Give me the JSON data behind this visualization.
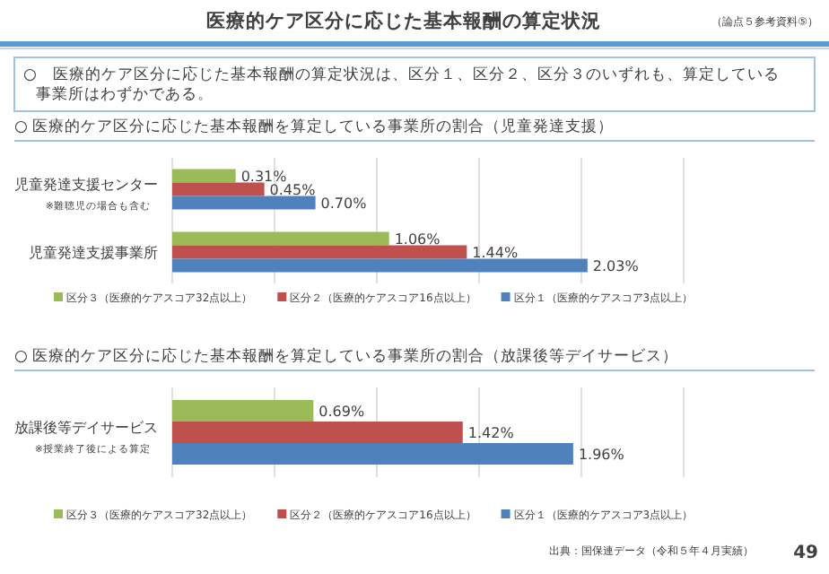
{
  "chart_data": [
    {
      "type": "bar",
      "orientation": "horizontal",
      "title": "○ 医療的ケア区分に応じた基本報酬を算定している事業所の割合（児童発達支援）",
      "categories": [
        "児童発達支援センター\n※難聴児の場合も含む",
        "児童発達支援事業所"
      ],
      "series": [
        {
          "name": "区分３（医療的ケアスコア32点以上）",
          "color": "#9bbb59",
          "values": [
            0.31,
            1.06
          ],
          "value_labels": [
            "0.31%",
            "1.06%"
          ]
        },
        {
          "name": "区分２（医療的ケアスコア16点以上）",
          "color": "#c0504d",
          "values": [
            0.45,
            1.44
          ],
          "value_labels": [
            "0.45%",
            "1.44%"
          ]
        },
        {
          "name": "区分１（医療的ケアスコア3点以上）",
          "color": "#4f81bd",
          "values": [
            0.7,
            2.03
          ],
          "value_labels": [
            "0.70%",
            "2.03%"
          ]
        }
      ],
      "xlim": [
        0,
        2.5
      ],
      "xticks": [
        {
          "value": 0,
          "label": null
        },
        {
          "value": 0.5,
          "label": null
        },
        {
          "value": 1,
          "label": null
        },
        {
          "value": 1.5,
          "label": null
        },
        {
          "value": 2,
          "label": null
        },
        {
          "value": 2.5,
          "label": null
        }
      ],
      "grid": "x",
      "legend": "bottom",
      "tick_labels": "y",
      "annotations": [
        "医療的ケア区分に応じた基本報酬の算定状況",
        "（論点５参考資料⑤）",
        "○　医療的ケア区分に応じた基本報酬の算定状況は、区分１、区分２、区分３のいずれも、算定している事業所はわずかである。"
      ]
    },
    {
      "type": "bar",
      "orientation": "horizontal",
      "title": "○ 医療的ケア区分に応じた基本報酬を算定している事業所の割合（放課後等デイサービス）",
      "categories": [
        "放課後等デイサービス\n※授業終了後による算定"
      ],
      "series": [
        {
          "name": "区分３（医療的ケアスコア32点以上）",
          "color": "#9bbb59",
          "values": [
            0.69
          ],
          "value_labels": [
            "0.69%"
          ]
        },
        {
          "name": "区分２（医療的ケアスコア16点以上）",
          "color": "#c0504d",
          "values": [
            1.42
          ],
          "value_labels": [
            "1.42%"
          ]
        },
        {
          "name": "区分１（医療的ケアスコア3点以上）",
          "color": "#4f81bd",
          "values": [
            1.96
          ],
          "value_labels": [
            "1.96%"
          ]
        }
      ],
      "xlim": [
        0,
        2.5
      ],
      "xticks": [
        {
          "value": 0,
          "label": null
        },
        {
          "value": 0.5,
          "label": null
        },
        {
          "value": 1,
          "label": null
        },
        {
          "value": 1.5,
          "label": null
        },
        {
          "value": 2,
          "label": null
        },
        {
          "value": 2.5,
          "label": null
        }
      ],
      "grid": "x",
      "legend": "bottom",
      "tick_labels": "y",
      "annotations": [
        "出典：国保連データ（令和５年４月実績）",
        "49"
      ]
    }
  ]
}
